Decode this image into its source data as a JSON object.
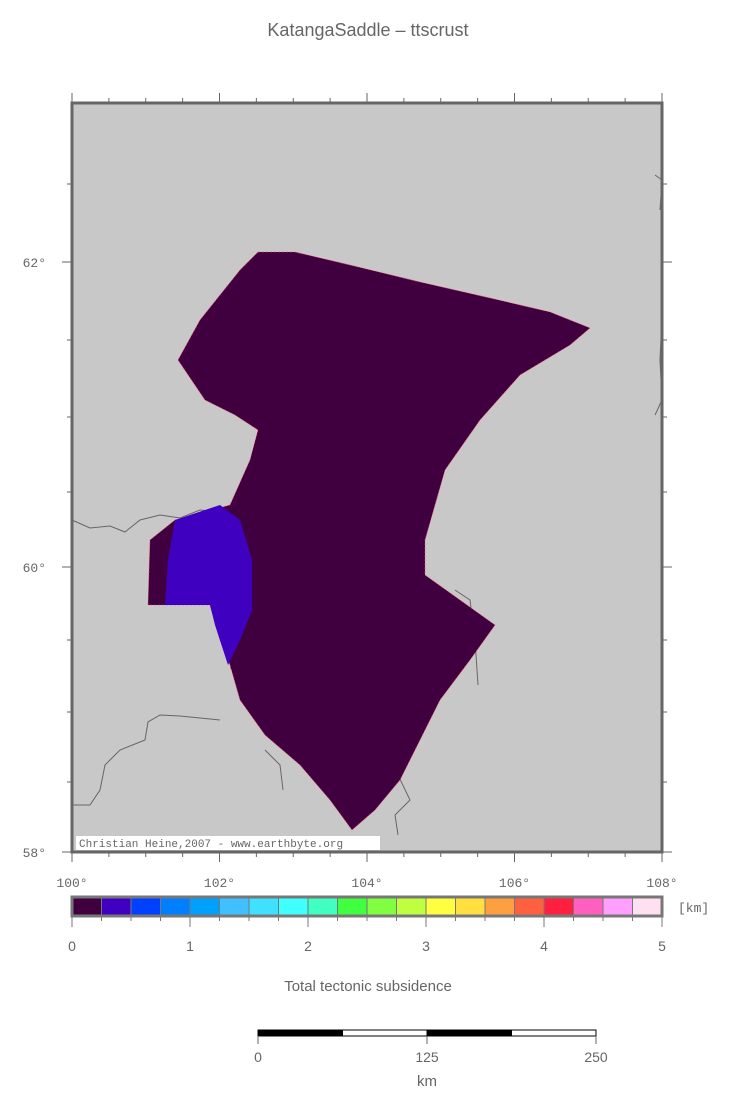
{
  "title": "KatangaSaddle – ttscrust",
  "map": {
    "lon_ticks": [
      "100°",
      "102°",
      "104°",
      "106°",
      "108°"
    ],
    "lat_ticks": [
      "58°",
      "60°",
      "62°"
    ],
    "background_color": "#c8c8c8",
    "region_colors": {
      "main": "#400040",
      "patch": "#4000c0"
    },
    "credit": "Christian Heine,2007 - www.earthbyte.org"
  },
  "colorbar": {
    "colors": [
      "#400040",
      "#4000c0",
      "#0040ff",
      "#0080ff",
      "#00a0ff",
      "#40c0ff",
      "#40e0ff",
      "#40ffff",
      "#40ffc0",
      "#40ff40",
      "#80ff40",
      "#c0ff40",
      "#ffff40",
      "#ffe040",
      "#ffa040",
      "#ff6040",
      "#ff2040",
      "#ff60c0",
      "#ffa0ff",
      "#ffe0f0"
    ],
    "tick_labels": [
      "0",
      "1",
      "2",
      "3",
      "4",
      "5"
    ],
    "unit": "[km]",
    "label": "Total tectonic subsidence",
    "range": [
      0,
      5
    ]
  },
  "scalebar": {
    "labels": [
      "0",
      "125",
      "250"
    ],
    "unit": "km"
  }
}
